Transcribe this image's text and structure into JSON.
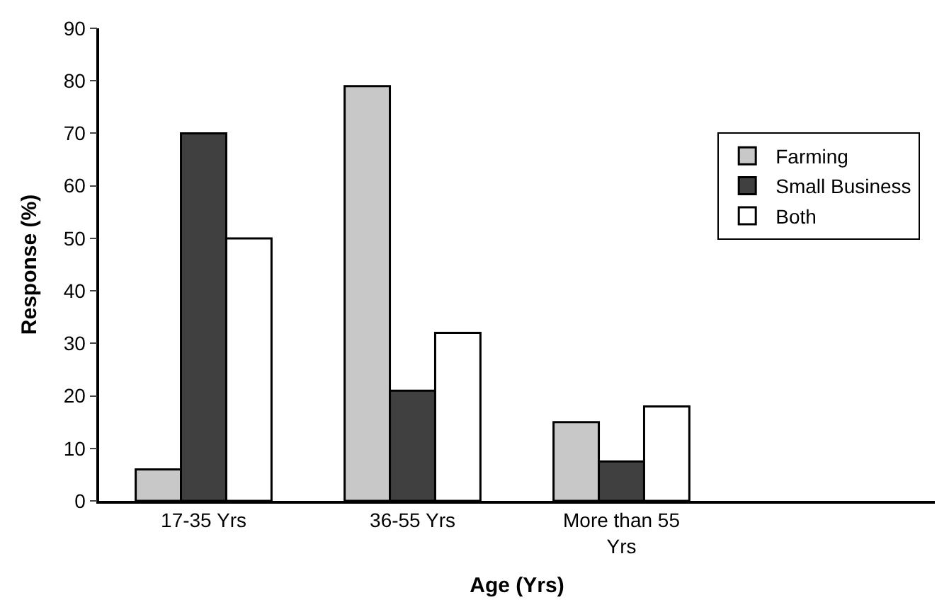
{
  "chart_data": {
    "type": "bar",
    "xlabel": "Age (Yrs)",
    "ylabel": "Response (%)",
    "categories": [
      "17-35 Yrs",
      "36-55 Yrs",
      "More than 55 Yrs",
      null
    ],
    "series": [
      {
        "name": "Farming",
        "color": "#c8c8c8",
        "values": [
          6,
          79,
          15,
          null
        ]
      },
      {
        "name": "Small Business",
        "color": "#404040",
        "values": [
          70,
          21,
          7.5,
          null
        ]
      },
      {
        "name": "Both",
        "color": "#ffffff",
        "values": [
          50,
          32,
          18,
          null
        ]
      }
    ],
    "ylim": [
      0,
      90
    ],
    "yticks": [
      0,
      10,
      20,
      30,
      40,
      50,
      60,
      70,
      80,
      90
    ],
    "legend": "top right"
  }
}
